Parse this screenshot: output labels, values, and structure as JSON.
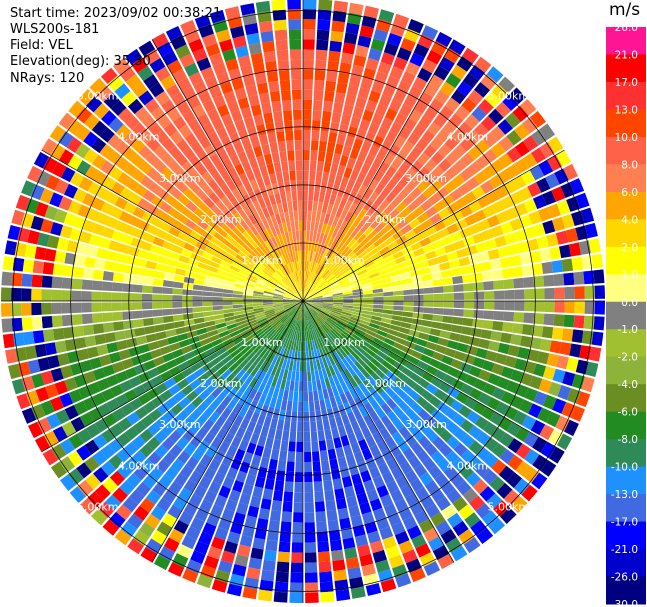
{
  "header": {
    "start_time": "Start time: 2023/09/02 00:38:21",
    "instrument": "WLS200s-181",
    "field": "Field: VEL",
    "elevation": "Elevation(deg): 35.30",
    "nrays": "NRays: 120"
  },
  "colorbar": {
    "unit": "m/s",
    "ticks": [
      "26.0",
      "21.0",
      "17.0",
      "13.0",
      "10.0",
      "8.0",
      "6.0",
      "4.0",
      "2.0",
      "1.0",
      "0.0",
      "-1.0",
      "-2.0",
      "-4.0",
      "-6.0",
      "-8.0",
      "-10.0",
      "-13.0",
      "-17.0",
      "-21.0",
      "-26.0",
      "-30.0"
    ],
    "colors": [
      "#ff1493",
      "#ff0000",
      "#ff3030",
      "#ff4500",
      "#ff6347",
      "#ff7f50",
      "#ffa500",
      "#ffd700",
      "#ffff00",
      "#ffff80",
      "#808080",
      "#a0c030",
      "#8db33a",
      "#6b8e23",
      "#228b22",
      "#2e8b57",
      "#1e90ff",
      "#4169e1",
      "#0000ff",
      "#0000cd",
      "#000080"
    ]
  },
  "chart_data": {
    "type": "polar_ppi",
    "field": "VEL",
    "units": "m/s",
    "nrays": 120,
    "range_rings_km": [
      1,
      2,
      3,
      4,
      5
    ],
    "ring_labels": [
      "1.00km",
      "2.00km",
      "3.00km",
      "4.00km",
      "5.00km"
    ],
    "max_range_km": 5.2,
    "pattern": {
      "north_sector_velocity_ms": 13.0,
      "south_sector_velocity_ms": -13.0,
      "zero_line_azimuth_deg": [
        90,
        270
      ],
      "noise_beyond_km": 4.2
    }
  }
}
